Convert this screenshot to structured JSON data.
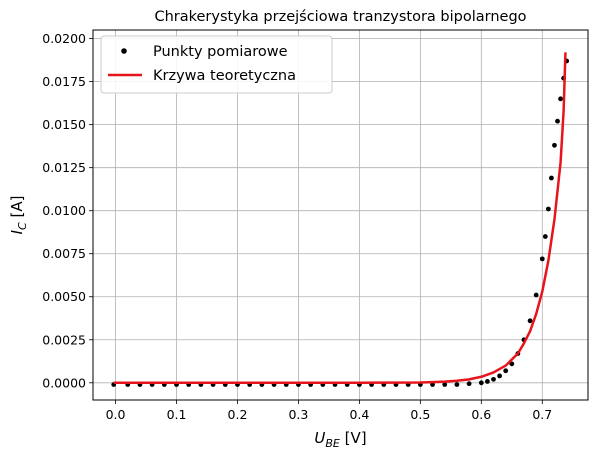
{
  "chart_data": {
    "type": "line",
    "title": "Chrakerystyka przejściowa tranzystora bipolarnego",
    "xlabel": {
      "main": "U",
      "sub": "BE",
      "unit": " [V]"
    },
    "ylabel": {
      "main": "I",
      "sub": "C",
      "unit": " [A]"
    },
    "xlim": [
      -0.037,
      0.775
    ],
    "ylim": [
      -0.001,
      0.0205
    ],
    "xticks": [
      0.0,
      0.1,
      0.2,
      0.3,
      0.4,
      0.5,
      0.6,
      0.7
    ],
    "xtick_labels": [
      "0.0",
      "0.1",
      "0.2",
      "0.3",
      "0.4",
      "0.5",
      "0.6",
      "0.7"
    ],
    "yticks": [
      0.0,
      0.0025,
      0.005,
      0.0075,
      0.01,
      0.0125,
      0.015,
      0.0175,
      0.02
    ],
    "ytick_labels": [
      "0.0000",
      "0.0025",
      "0.0050",
      "0.0075",
      "0.0100",
      "0.0125",
      "0.0150",
      "0.0175",
      "0.0200"
    ],
    "grid": true,
    "legend": "top-left",
    "series": [
      {
        "name": "Punkty pomiarowe",
        "kind": "scatter",
        "color": "#000000",
        "x": [
          -0.003,
          0.02,
          0.04,
          0.06,
          0.08,
          0.1,
          0.12,
          0.14,
          0.16,
          0.18,
          0.2,
          0.22,
          0.24,
          0.26,
          0.28,
          0.3,
          0.32,
          0.34,
          0.36,
          0.38,
          0.4,
          0.42,
          0.44,
          0.46,
          0.48,
          0.5,
          0.52,
          0.54,
          0.56,
          0.58,
          0.6,
          0.61,
          0.62,
          0.63,
          0.64,
          0.65,
          0.66,
          0.67,
          0.68,
          0.69,
          0.7,
          0.705,
          0.71,
          0.715,
          0.72,
          0.725,
          0.73,
          0.735,
          0.74
        ],
        "y": [
          -0.0001,
          -0.0001,
          -0.0001,
          -0.0001,
          -0.0001,
          -0.0001,
          -0.0001,
          -0.0001,
          -0.0001,
          -0.0001,
          -0.0001,
          -0.0001,
          -0.0001,
          -0.0001,
          -0.0001,
          -0.0001,
          -0.0001,
          -0.0001,
          -0.0001,
          -0.0001,
          -0.0001,
          -0.0001,
          -0.0001,
          -0.0001,
          -0.0001,
          -0.0001,
          -0.0001,
          -0.0001,
          -0.0001,
          -5e-05,
          0.0,
          8e-05,
          0.0002,
          0.0004,
          0.0007,
          0.0011,
          0.0017,
          0.0025,
          0.0036,
          0.0051,
          0.0072,
          0.0085,
          0.0101,
          0.0119,
          0.0138,
          0.0152,
          0.0165,
          0.0177,
          0.0187
        ]
      },
      {
        "name": "Krzywa teoretyczna",
        "kind": "line",
        "color": "#e8141c",
        "x": [
          -0.003,
          0.1,
          0.2,
          0.3,
          0.4,
          0.45,
          0.5,
          0.52,
          0.54,
          0.56,
          0.58,
          0.6,
          0.62,
          0.64,
          0.66,
          0.67,
          0.68,
          0.69,
          0.7,
          0.71,
          0.72,
          0.73,
          0.735,
          0.738
        ],
        "y": [
          0.0,
          0.0,
          0.0,
          0.0,
          0.0,
          1e-05,
          2e-05,
          4e-05,
          7e-05,
          0.00012,
          0.0002,
          0.00035,
          0.0006,
          0.001,
          0.0017,
          0.0023,
          0.003,
          0.004,
          0.0053,
          0.0071,
          0.0095,
          0.0128,
          0.0158,
          0.0192
        ]
      }
    ]
  }
}
